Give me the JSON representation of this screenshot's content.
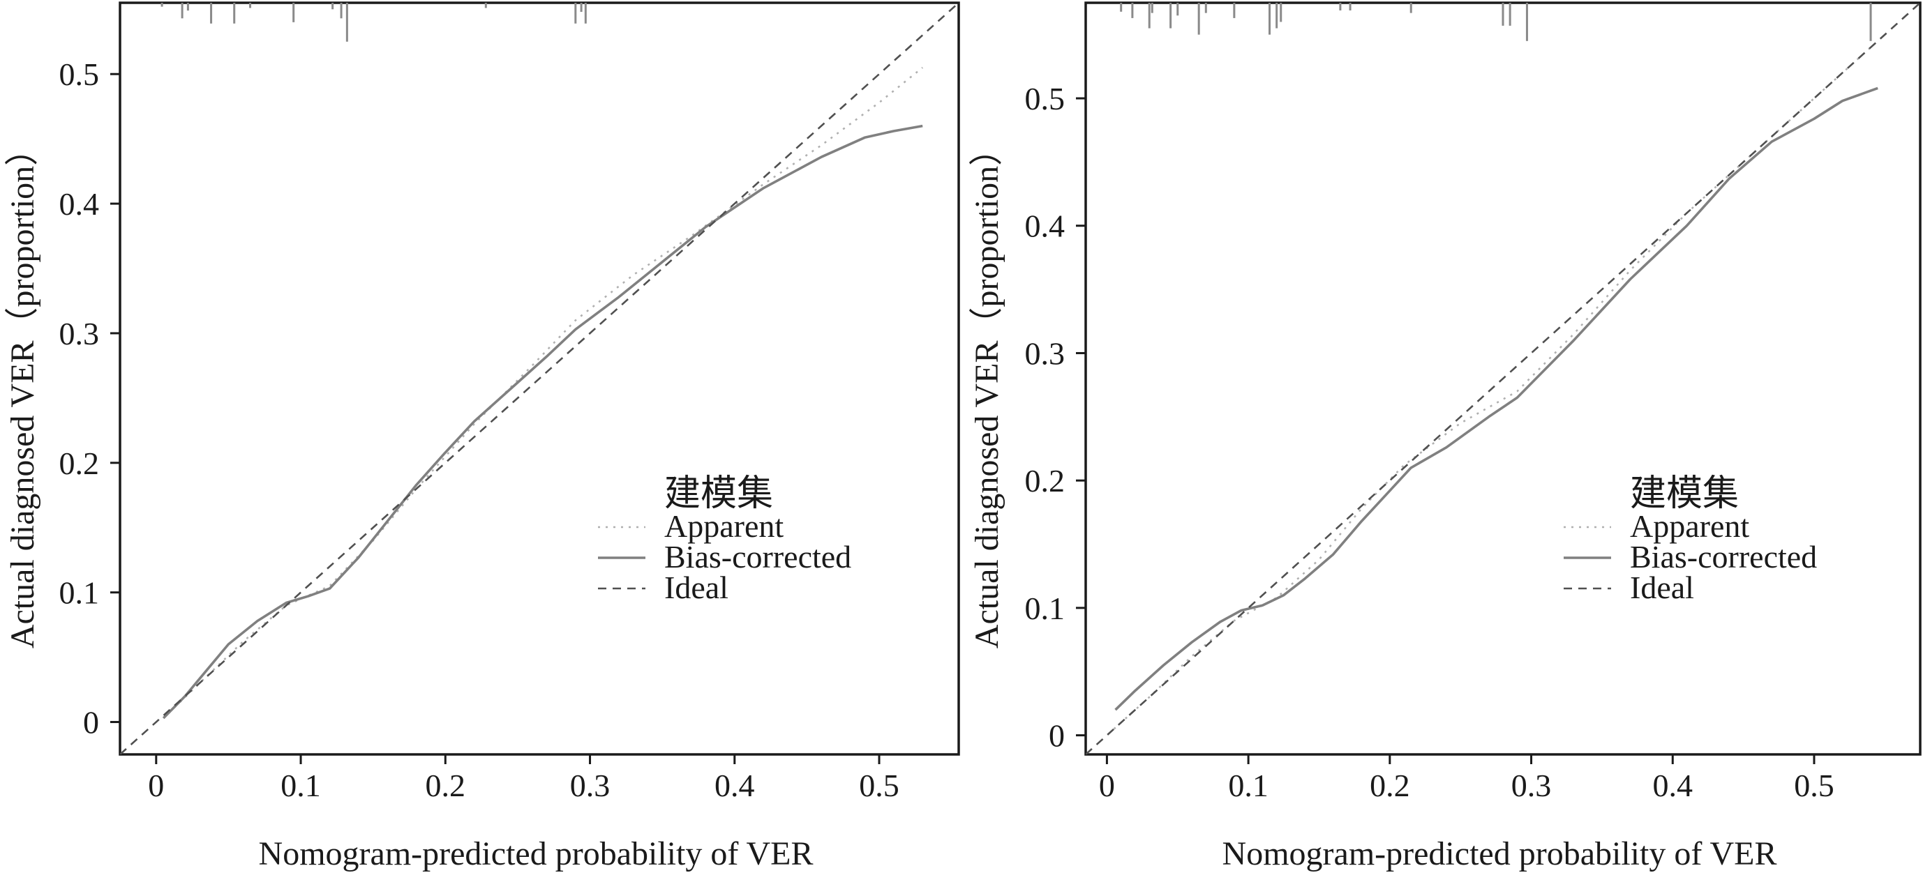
{
  "chart_data": [
    {
      "type": "line",
      "xlabel": "Nomogram-predicted probability of VER",
      "ylabel": "Actual diagnosed VER（proportion）",
      "xlim": [
        -0.025,
        0.555
      ],
      "ylim": [
        -0.025,
        0.555
      ],
      "xticks": [
        0,
        0.1,
        0.2,
        0.3,
        0.4,
        0.5
      ],
      "yticks": [
        0,
        0.1,
        0.2,
        0.3,
        0.4,
        0.5
      ],
      "xtick_labels": [
        "0",
        "0.1",
        "0.2",
        "0.3",
        "0.4",
        "0.5"
      ],
      "ytick_labels": [
        "0",
        "0.1",
        "0.2",
        "0.3",
        "0.4",
        "0.5"
      ],
      "grid": false,
      "legend": {
        "title": "建模集",
        "placement": "bottom-right"
      },
      "series": [
        {
          "name": "Apparent",
          "style": "dotted",
          "color": "#b0b0b0",
          "x": [
            0.005,
            0.03,
            0.06,
            0.09,
            0.12,
            0.15,
            0.18,
            0.22,
            0.26,
            0.29,
            0.33,
            0.37,
            0.42,
            0.46,
            0.5,
            0.53
          ],
          "y": [
            0.003,
            0.03,
            0.062,
            0.09,
            0.105,
            0.14,
            0.18,
            0.23,
            0.275,
            0.31,
            0.345,
            0.375,
            0.415,
            0.445,
            0.478,
            0.505
          ]
        },
        {
          "name": "Bias-corrected",
          "style": "solid",
          "color": "#808080",
          "x": [
            0.005,
            0.02,
            0.035,
            0.05,
            0.07,
            0.09,
            0.105,
            0.12,
            0.14,
            0.16,
            0.18,
            0.2,
            0.22,
            0.25,
            0.27,
            0.29,
            0.32,
            0.35,
            0.38,
            0.42,
            0.46,
            0.49,
            0.51,
            0.53
          ],
          "y": [
            0.003,
            0.02,
            0.04,
            0.06,
            0.078,
            0.092,
            0.097,
            0.103,
            0.127,
            0.155,
            0.183,
            0.208,
            0.232,
            0.262,
            0.282,
            0.303,
            0.328,
            0.355,
            0.382,
            0.412,
            0.436,
            0.451,
            0.456,
            0.46
          ]
        },
        {
          "name": "Ideal",
          "style": "dashed",
          "color": "#505050",
          "x": [
            -0.025,
            0.555
          ],
          "y": [
            -0.025,
            0.555
          ]
        }
      ],
      "rug": {
        "x": [
          0.004,
          0.018,
          0.022,
          0.038,
          0.054,
          0.065,
          0.095,
          0.122,
          0.128,
          0.132,
          0.228,
          0.29,
          0.294,
          0.297
        ],
        "len": [
          0.003,
          0.012,
          0.006,
          0.016,
          0.016,
          0.004,
          0.015,
          0.005,
          0.012,
          0.03,
          0.004,
          0.016,
          0.007,
          0.016
        ]
      }
    },
    {
      "type": "line",
      "xlabel": "Nomogram-predicted probability of VER",
      "ylabel": "Actual diagnosed VER（proportion）",
      "xlim": [
        -0.015,
        0.575
      ],
      "ylim": [
        -0.015,
        0.575
      ],
      "xticks": [
        0,
        0.1,
        0.2,
        0.3,
        0.4,
        0.5
      ],
      "yticks": [
        0,
        0.1,
        0.2,
        0.3,
        0.4,
        0.5
      ],
      "xtick_labels": [
        "0",
        "0.1",
        "0.2",
        "0.3",
        "0.4",
        "0.5"
      ],
      "ytick_labels": [
        "0",
        "0.1",
        "0.2",
        "0.3",
        "0.4",
        "0.5"
      ],
      "grid": false,
      "legend": {
        "title": "建模集",
        "placement": "bottom-right"
      },
      "series": [
        {
          "name": "Apparent",
          "style": "dotted",
          "color": "#b0b0b0",
          "x": [
            0.005,
            0.03,
            0.06,
            0.09,
            0.12,
            0.15,
            0.18,
            0.21,
            0.25,
            0.29,
            0.33,
            0.37,
            0.41,
            0.45,
            0.49,
            0.545
          ],
          "y": [
            0.005,
            0.03,
            0.062,
            0.09,
            0.108,
            0.138,
            0.178,
            0.212,
            0.245,
            0.27,
            0.315,
            0.365,
            0.41,
            0.45,
            0.49,
            0.545
          ]
        },
        {
          "name": "Bias-corrected",
          "style": "solid",
          "color": "#808080",
          "x": [
            0.006,
            0.02,
            0.04,
            0.06,
            0.08,
            0.095,
            0.11,
            0.125,
            0.14,
            0.16,
            0.18,
            0.2,
            0.215,
            0.24,
            0.27,
            0.29,
            0.33,
            0.37,
            0.41,
            0.44,
            0.47,
            0.5,
            0.52,
            0.545
          ],
          "y": [
            0.02,
            0.035,
            0.055,
            0.073,
            0.089,
            0.098,
            0.102,
            0.11,
            0.123,
            0.142,
            0.168,
            0.192,
            0.21,
            0.226,
            0.25,
            0.265,
            0.31,
            0.358,
            0.4,
            0.437,
            0.466,
            0.484,
            0.498,
            0.508
          ]
        },
        {
          "name": "Ideal",
          "style": "dashed",
          "color": "#505050",
          "x": [
            -0.015,
            0.575
          ],
          "y": [
            -0.015,
            0.575
          ]
        }
      ],
      "rug": {
        "x": [
          0.01,
          0.018,
          0.03,
          0.032,
          0.045,
          0.05,
          0.065,
          0.07,
          0.09,
          0.115,
          0.12,
          0.123,
          0.165,
          0.172,
          0.215,
          0.28,
          0.285,
          0.297,
          0.54
        ],
        "len": [
          0.007,
          0.012,
          0.02,
          0.008,
          0.02,
          0.01,
          0.025,
          0.008,
          0.012,
          0.025,
          0.02,
          0.015,
          0.006,
          0.006,
          0.008,
          0.018,
          0.018,
          0.03,
          0.03
        ]
      }
    }
  ]
}
